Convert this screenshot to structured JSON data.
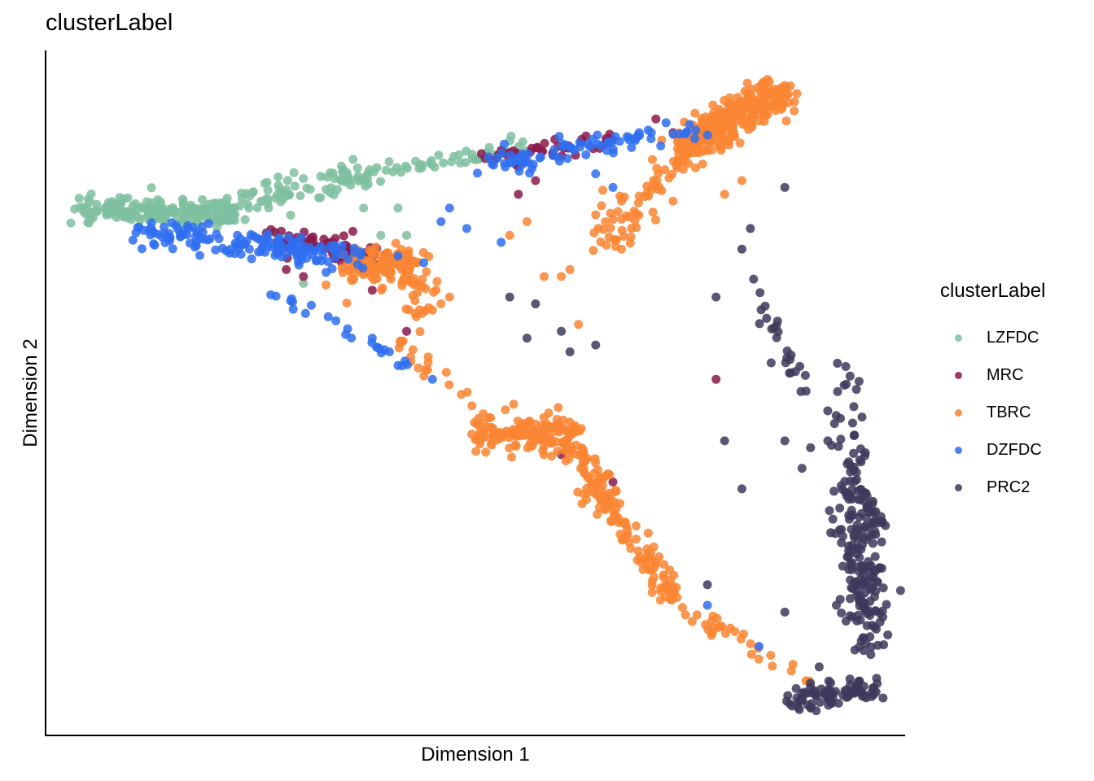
{
  "chart_data": {
    "type": "scatter",
    "title": "clusterLabel",
    "xlabel": "Dimension 1",
    "ylabel": "Dimension 2",
    "xlim": [
      0,
      100
    ],
    "ylim": [
      0,
      100
    ],
    "ticks_shown": false,
    "grid": false,
    "legend": {
      "title": "clusterLabel",
      "position": "right",
      "entries": [
        "LZFDC",
        "MRC",
        "TBRC",
        "DZFDC",
        "PRC2"
      ]
    },
    "series": [
      {
        "name": "LZFDC",
        "color": "#7FBFA0",
        "segments": [
          {
            "from": [
              4,
              77
            ],
            "to": [
              22,
              76
            ],
            "spread": 0.9,
            "count": 190
          },
          {
            "from": [
              20,
              77
            ],
            "to": [
              37,
              82
            ],
            "spread": 1.1,
            "count": 80
          },
          {
            "from": [
              34,
              81
            ],
            "to": [
              56,
              86
            ],
            "spread": 0.7,
            "count": 55
          }
        ],
        "points": [
          [
            41,
            77
          ],
          [
            37,
            77
          ],
          [
            42,
            73
          ],
          [
            39,
            73
          ],
          [
            30,
            66
          ],
          [
            27,
            73
          ]
        ]
      },
      {
        "name": "MRC",
        "color": "#8B1A4B",
        "segments": [
          {
            "from": [
              26,
              73
            ],
            "to": [
              38,
              70
            ],
            "spread": 0.9,
            "count": 70
          },
          {
            "from": [
              52,
              84
            ],
            "to": [
              66,
              87
            ],
            "spread": 0.8,
            "count": 40
          }
        ],
        "points": [
          [
            71,
            90
          ],
          [
            73,
            88
          ],
          [
            55,
            83
          ],
          [
            57,
            81
          ],
          [
            55,
            79
          ],
          [
            59,
            85
          ],
          [
            28,
            68
          ],
          [
            30,
            67
          ],
          [
            38,
            65
          ],
          [
            42,
            59
          ],
          [
            66,
            37
          ],
          [
            60,
            41
          ],
          [
            78,
            52
          ]
        ]
      },
      {
        "name": "TBRC",
        "color": "#F98532",
        "segments": [
          {
            "from": [
              74,
              86
            ],
            "to": [
              85,
              94
            ],
            "spread": 1.3,
            "count": 260
          },
          {
            "from": [
              70,
              81
            ],
            "to": [
              78,
              87
            ],
            "spread": 1.2,
            "count": 40
          },
          {
            "from": [
              65,
              72
            ],
            "to": [
              71,
              81
            ],
            "spread": 1.5,
            "count": 45
          },
          {
            "from": [
              36,
              68
            ],
            "to": [
              43,
              69
            ],
            "spread": 1.3,
            "count": 140
          },
          {
            "from": [
              43,
              65
            ],
            "to": [
              44,
              60
            ],
            "spread": 1.3,
            "count": 20
          },
          {
            "from": [
              51,
              44
            ],
            "to": [
              61,
              44
            ],
            "spread": 1.3,
            "count": 140
          },
          {
            "from": [
              61,
              42
            ],
            "to": [
              73,
              20
            ],
            "spread": 0.9,
            "count": 140
          },
          {
            "from": [
              41,
              58
            ],
            "to": [
              51,
              46
            ],
            "spread": 0.8,
            "count": 25
          },
          {
            "from": [
              72,
              20
            ],
            "to": [
              89,
              8
            ],
            "spread": 0.6,
            "count": 35
          }
        ],
        "points": [
          [
            56,
            75
          ],
          [
            54,
            73
          ],
          [
            67,
            78
          ],
          [
            60,
            67
          ],
          [
            58,
            67
          ],
          [
            61,
            68
          ],
          [
            62,
            60
          ],
          [
            67,
            71
          ],
          [
            64,
            76
          ],
          [
            79,
            79
          ],
          [
            81,
            81
          ],
          [
            73,
            78
          ],
          [
            36,
            71
          ],
          [
            46,
            63
          ],
          [
            47,
            64
          ]
        ]
      },
      {
        "name": "DZFDC",
        "color": "#2F6FF0",
        "segments": [
          {
            "from": [
              10,
              74
            ],
            "to": [
              33,
              70
            ],
            "spread": 1.0,
            "count": 110
          },
          {
            "from": [
              24,
              72
            ],
            "to": [
              37,
              70
            ],
            "spread": 1.0,
            "count": 45
          },
          {
            "from": [
              50,
              83
            ],
            "to": [
              77,
              89
            ],
            "spread": 0.9,
            "count": 80
          },
          {
            "from": [
              26,
              65
            ],
            "to": [
              41,
              55
            ],
            "spread": 0.9,
            "count": 22
          }
        ],
        "points": [
          [
            47,
            77
          ],
          [
            46,
            75
          ],
          [
            53,
            72
          ],
          [
            49,
            74
          ],
          [
            41,
            70
          ],
          [
            44,
            69
          ],
          [
            38,
            58
          ],
          [
            40,
            56
          ],
          [
            45,
            52
          ],
          [
            41,
            54
          ],
          [
            77,
            19
          ],
          [
            83,
            13
          ],
          [
            66,
            80
          ],
          [
            64,
            82
          ]
        ]
      },
      {
        "name": "PRC2",
        "color": "#3D3A5C",
        "segments": [
          {
            "from": [
              93,
              36
            ],
            "to": [
              97,
              32
            ],
            "spread": 0.9,
            "count": 45
          },
          {
            "from": [
              94,
              32
            ],
            "to": [
              96,
              13
            ],
            "spread": 1.2,
            "count": 150
          },
          {
            "from": [
              87,
              5
            ],
            "to": [
              96,
              7
            ],
            "spread": 0.9,
            "count": 85
          },
          {
            "from": [
              93,
              53
            ],
            "to": [
              94,
              35
            ],
            "spread": 0.9,
            "count": 35
          },
          {
            "from": [
              82,
              66
            ],
            "to": [
              89,
              49
            ],
            "spread": 0.8,
            "count": 25
          }
        ],
        "points": [
          [
            86,
            80
          ],
          [
            82,
            74
          ],
          [
            81,
            71
          ],
          [
            54,
            64
          ],
          [
            57,
            63
          ],
          [
            60,
            59
          ],
          [
            56,
            58
          ],
          [
            64,
            57
          ],
          [
            61,
            56
          ],
          [
            78,
            64
          ],
          [
            86,
            43
          ],
          [
            89,
            42
          ],
          [
            91,
            43
          ],
          [
            88,
            39
          ],
          [
            81,
            36
          ],
          [
            79,
            43
          ],
          [
            77,
            22
          ],
          [
            86,
            18
          ],
          [
            92,
            19
          ],
          [
            90,
            10
          ]
        ]
      }
    ]
  }
}
